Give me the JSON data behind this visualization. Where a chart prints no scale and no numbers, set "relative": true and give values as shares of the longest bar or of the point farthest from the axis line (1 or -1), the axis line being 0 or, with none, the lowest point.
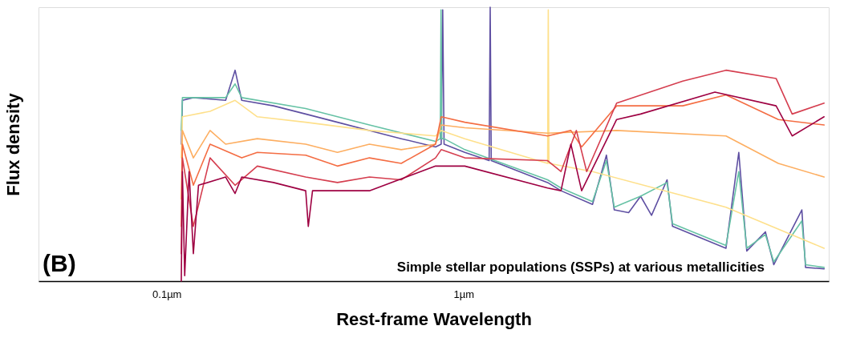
{
  "chart_data": {
    "type": "line",
    "relative": true,
    "log": "x",
    "grid": false,
    "legend": false,
    "tick_labels": "x",
    "marker": "none",
    "line_style": "solid",
    "xlabel": "Rest-frame Wavelength",
    "ylabel": "Flux density",
    "annotations": [
      "(B)",
      "Simple stellar populations (SSPs) at various metallicities"
    ],
    "xlim": [
      0.037,
      17
    ],
    "xticks": [
      {
        "value": 0.1,
        "label": "0.1µm"
      },
      {
        "value": 1,
        "label": "1µm"
      }
    ],
    "series": [
      {
        "color": "#5e4fa2",
        "x": [
          0.112,
          0.113,
          0.123,
          0.158,
          0.17,
          0.179,
          0.229,
          0.294,
          0.376,
          0.482,
          0.617,
          0.805,
          0.841,
          0.851,
          0.86,
          1.01,
          1.22,
          1.23,
          1.24,
          1.92,
          2.13,
          2.72,
          3.03,
          3.22,
          3.6,
          3.95,
          4.3,
          4.85,
          5.06,
          7.66,
          8.46,
          9.0,
          10.4,
          11.1,
          13.8,
          14.2,
          16.4
        ],
        "values": [
          0.5,
          0.66,
          0.67,
          0.66,
          0.77,
          0.66,
          0.64,
          0.61,
          0.58,
          0.55,
          0.52,
          0.49,
          0.5,
          0.99,
          0.5,
          0.47,
          0.44,
          1.0,
          0.44,
          0.36,
          0.33,
          0.28,
          0.46,
          0.26,
          0.25,
          0.31,
          0.24,
          0.37,
          0.2,
          0.12,
          0.47,
          0.11,
          0.18,
          0.06,
          0.26,
          0.05,
          0.045
        ]
      },
      {
        "color": "#66c2a5",
        "x": [
          0.112,
          0.113,
          0.158,
          0.17,
          0.179,
          0.294,
          0.482,
          0.805,
          0.835,
          0.84,
          0.845,
          0.86,
          1.01,
          1.92,
          2.13,
          2.72,
          3.03,
          3.22,
          3.95,
          4.85,
          5.06,
          7.66,
          8.46,
          9.0,
          10.4,
          11.1,
          13.8,
          14.2,
          16.4
        ],
        "values": [
          0.55,
          0.67,
          0.67,
          0.72,
          0.67,
          0.63,
          0.57,
          0.51,
          0.52,
          0.99,
          0.52,
          0.52,
          0.48,
          0.37,
          0.34,
          0.29,
          0.44,
          0.27,
          0.31,
          0.36,
          0.21,
          0.13,
          0.4,
          0.12,
          0.17,
          0.07,
          0.22,
          0.06,
          0.05
        ]
      },
      {
        "color": "#fee08b",
        "x": [
          0.112,
          0.113,
          0.14,
          0.17,
          0.202,
          0.294,
          0.482,
          0.805,
          0.841,
          1.01,
          1.92,
          1.93,
          1.94,
          2.72,
          7.66,
          16.4
        ],
        "values": [
          0.45,
          0.6,
          0.62,
          0.66,
          0.6,
          0.58,
          0.55,
          0.53,
          0.55,
          0.52,
          0.43,
          0.99,
          0.43,
          0.4,
          0.27,
          0.12
        ]
      },
      {
        "color": "#fdae61",
        "x": [
          0.112,
          0.113,
          0.123,
          0.14,
          0.158,
          0.202,
          0.294,
          0.376,
          0.482,
          0.617,
          0.805,
          0.841,
          1.01,
          1.92,
          3.28,
          7.66,
          11.5,
          16.4
        ],
        "values": [
          0.3,
          0.55,
          0.45,
          0.55,
          0.5,
          0.52,
          0.5,
          0.47,
          0.5,
          0.48,
          0.5,
          0.57,
          0.56,
          0.54,
          0.55,
          0.53,
          0.43,
          0.38
        ]
      },
      {
        "color": "#f46d43",
        "x": [
          0.112,
          0.113,
          0.123,
          0.14,
          0.179,
          0.202,
          0.294,
          0.376,
          0.482,
          0.617,
          0.805,
          0.841,
          1.01,
          1.92,
          2.3,
          2.5,
          3.28,
          5.48,
          7.66,
          11.5,
          16.4
        ],
        "values": [
          0.2,
          0.5,
          0.35,
          0.5,
          0.45,
          0.47,
          0.46,
          0.42,
          0.45,
          0.43,
          0.5,
          0.6,
          0.58,
          0.53,
          0.55,
          0.49,
          0.64,
          0.64,
          0.68,
          0.59,
          0.57
        ]
      },
      {
        "color": "#d53e4f",
        "x": [
          0.112,
          0.113,
          0.123,
          0.14,
          0.17,
          0.202,
          0.294,
          0.376,
          0.482,
          0.617,
          0.805,
          0.841,
          1.01,
          1.92,
          2.13,
          2.4,
          2.6,
          3.28,
          5.48,
          7.66,
          11.3,
          12.8,
          16.4
        ],
        "values": [
          0.1,
          0.45,
          0.2,
          0.45,
          0.35,
          0.42,
          0.38,
          0.36,
          0.38,
          0.37,
          0.45,
          0.48,
          0.45,
          0.44,
          0.4,
          0.55,
          0.4,
          0.65,
          0.73,
          0.77,
          0.74,
          0.61,
          0.65
        ]
      },
      {
        "color": "#9e0142",
        "x": [
          0.112,
          0.113,
          0.115,
          0.119,
          0.123,
          0.128,
          0.158,
          0.17,
          0.179,
          0.229,
          0.294,
          0.3,
          0.31,
          0.482,
          0.805,
          0.841,
          1.01,
          1.92,
          2.13,
          2.3,
          2.5,
          3.28,
          3.95,
          7.03,
          11.3,
          12.8,
          16.4
        ],
        "values": [
          0.0,
          0.4,
          0.02,
          0.4,
          0.1,
          0.35,
          0.38,
          0.32,
          0.38,
          0.36,
          0.33,
          0.2,
          0.33,
          0.33,
          0.42,
          0.42,
          0.42,
          0.34,
          0.33,
          0.5,
          0.33,
          0.59,
          0.61,
          0.69,
          0.64,
          0.53,
          0.6
        ]
      }
    ]
  }
}
